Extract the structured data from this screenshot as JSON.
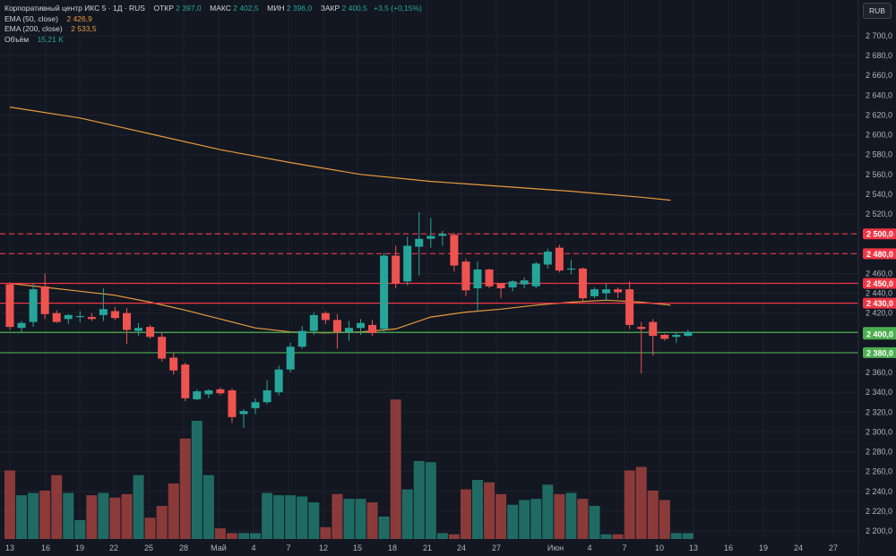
{
  "legend": {
    "instrument": "Корпоративный центр ИКС 5 · 1Д · RUS",
    "open_label": "ОТКР",
    "open_value": "2 397,0",
    "high_label": "МАКС",
    "high_value": "2 402,5",
    "low_label": "МИН",
    "low_value": "2 396,0",
    "close_label": "ЗАКР",
    "close_value": "2 400,5",
    "change": "+3,5 (+0,15%)",
    "ema50_label": "EMA (50, close)",
    "ema50_value": "2 426,9",
    "ema200_label": "EMA (200, close)",
    "ema200_value": "2 533,5",
    "volume_label": "Объём",
    "volume_value": "15,21 K"
  },
  "currency_button": "RUB",
  "colors": {
    "background": "#131722",
    "up": "#26a69a",
    "down": "#ef5350",
    "up_volume": "#1f6b64",
    "down_volume": "#8b3a3a",
    "ema50": "#e89a3c",
    "ema200": "#e89a3c",
    "resistance": "#f23645",
    "support": "#4caf50",
    "grid": "#1e222d",
    "axis_text": "#b2b5be"
  },
  "chart_data": {
    "type": "candlestick",
    "y_axis": {
      "ticks": [
        "2 700,0",
        "2 680,0",
        "2 660,0",
        "2 640,0",
        "2 620,0",
        "2 600,0",
        "2 580,0",
        "2 560,0",
        "2 540,0",
        "2 520,0",
        "2 500,0",
        "2 480,0",
        "2 460,0",
        "2 440,0",
        "2 420,0",
        "2 400,0",
        "2 380,0",
        "2 360,0",
        "2 340,0",
        "2 320,0",
        "2 300,0",
        "2 280,0",
        "2 260,0",
        "2 240,0",
        "2 220,0",
        "2 200,0"
      ],
      "tick_values": [
        2700,
        2680,
        2660,
        2640,
        2620,
        2600,
        2580,
        2560,
        2540,
        2520,
        2500,
        2480,
        2460,
        2440,
        2420,
        2400,
        2380,
        2360,
        2340,
        2320,
        2300,
        2280,
        2260,
        2240,
        2220,
        2200
      ],
      "range": [
        2192,
        2712
      ]
    },
    "x_axis": {
      "labels": [
        "13",
        "16",
        "19",
        "22",
        "25",
        "28",
        "Май",
        "4",
        "7",
        "12",
        "15",
        "18",
        "21",
        "24",
        "27",
        "Июн",
        "4",
        "7",
        "10",
        "13",
        "16",
        "19",
        "24",
        "27"
      ]
    },
    "candles": [
      {
        "o": 2449,
        "h": 2451,
        "l": 2403,
        "c": 2406
      },
      {
        "o": 2405,
        "h": 2412,
        "l": 2401,
        "c": 2410
      },
      {
        "o": 2411,
        "h": 2450,
        "l": 2406,
        "c": 2444
      },
      {
        "o": 2447,
        "h": 2460,
        "l": 2414,
        "c": 2419
      },
      {
        "o": 2420,
        "h": 2423,
        "l": 2410,
        "c": 2411
      },
      {
        "o": 2414,
        "h": 2419,
        "l": 2409,
        "c": 2418
      },
      {
        "o": 2416,
        "h": 2422,
        "l": 2411,
        "c": 2417
      },
      {
        "o": 2416,
        "h": 2420,
        "l": 2412,
        "c": 2414
      },
      {
        "o": 2418,
        "h": 2445,
        "l": 2412,
        "c": 2424
      },
      {
        "o": 2422,
        "h": 2426,
        "l": 2413,
        "c": 2415
      },
      {
        "o": 2420,
        "h": 2425,
        "l": 2389,
        "c": 2403
      },
      {
        "o": 2402,
        "h": 2410,
        "l": 2397,
        "c": 2405
      },
      {
        "o": 2406,
        "h": 2408,
        "l": 2394,
        "c": 2396
      },
      {
        "o": 2396,
        "h": 2400,
        "l": 2371,
        "c": 2374
      },
      {
        "o": 2375,
        "h": 2380,
        "l": 2358,
        "c": 2362
      },
      {
        "o": 2368,
        "h": 2370,
        "l": 2331,
        "c": 2334
      },
      {
        "o": 2333,
        "h": 2343,
        "l": 2332,
        "c": 2341
      },
      {
        "o": 2338,
        "h": 2343,
        "l": 2334,
        "c": 2342
      },
      {
        "o": 2343,
        "h": 2345,
        "l": 2337,
        "c": 2339
      },
      {
        "o": 2342,
        "h": 2344,
        "l": 2309,
        "c": 2315
      },
      {
        "o": 2318,
        "h": 2323,
        "l": 2304,
        "c": 2321
      },
      {
        "o": 2324,
        "h": 2334,
        "l": 2318,
        "c": 2330
      },
      {
        "o": 2330,
        "h": 2352,
        "l": 2328,
        "c": 2342
      },
      {
        "o": 2340,
        "h": 2367,
        "l": 2337,
        "c": 2363
      },
      {
        "o": 2363,
        "h": 2390,
        "l": 2360,
        "c": 2386
      },
      {
        "o": 2386,
        "h": 2407,
        "l": 2384,
        "c": 2402
      },
      {
        "o": 2402,
        "h": 2421,
        "l": 2398,
        "c": 2418
      },
      {
        "o": 2420,
        "h": 2422,
        "l": 2409,
        "c": 2413
      },
      {
        "o": 2413,
        "h": 2419,
        "l": 2384,
        "c": 2401
      },
      {
        "o": 2401,
        "h": 2412,
        "l": 2392,
        "c": 2405
      },
      {
        "o": 2405,
        "h": 2414,
        "l": 2398,
        "c": 2410
      },
      {
        "o": 2408,
        "h": 2413,
        "l": 2397,
        "c": 2400
      },
      {
        "o": 2404,
        "h": 2481,
        "l": 2400,
        "c": 2478
      },
      {
        "o": 2478,
        "h": 2488,
        "l": 2445,
        "c": 2450
      },
      {
        "o": 2452,
        "h": 2497,
        "l": 2448,
        "c": 2488
      },
      {
        "o": 2487,
        "h": 2522,
        "l": 2458,
        "c": 2495
      },
      {
        "o": 2495,
        "h": 2516,
        "l": 2486,
        "c": 2498
      },
      {
        "o": 2498,
        "h": 2503,
        "l": 2488,
        "c": 2500
      },
      {
        "o": 2499,
        "h": 2501,
        "l": 2462,
        "c": 2468
      },
      {
        "o": 2472,
        "h": 2475,
        "l": 2437,
        "c": 2443
      },
      {
        "o": 2445,
        "h": 2472,
        "l": 2422,
        "c": 2464
      },
      {
        "o": 2464,
        "h": 2465,
        "l": 2445,
        "c": 2447
      },
      {
        "o": 2450,
        "h": 2450,
        "l": 2435,
        "c": 2445
      },
      {
        "o": 2446,
        "h": 2453,
        "l": 2442,
        "c": 2452
      },
      {
        "o": 2449,
        "h": 2456,
        "l": 2445,
        "c": 2453
      },
      {
        "o": 2447,
        "h": 2472,
        "l": 2445,
        "c": 2470
      },
      {
        "o": 2469,
        "h": 2485,
        "l": 2465,
        "c": 2482
      },
      {
        "o": 2486,
        "h": 2489,
        "l": 2461,
        "c": 2463
      },
      {
        "o": 2465,
        "h": 2474,
        "l": 2459,
        "c": 2465
      },
      {
        "o": 2465,
        "h": 2466,
        "l": 2432,
        "c": 2435
      },
      {
        "o": 2437,
        "h": 2446,
        "l": 2435,
        "c": 2444
      },
      {
        "o": 2440,
        "h": 2450,
        "l": 2432,
        "c": 2444
      },
      {
        "o": 2444,
        "h": 2446,
        "l": 2435,
        "c": 2441
      },
      {
        "o": 2444,
        "h": 2452,
        "l": 2404,
        "c": 2408
      },
      {
        "o": 2406,
        "h": 2411,
        "l": 2359,
        "c": 2404
      },
      {
        "o": 2411,
        "h": 2414,
        "l": 2377,
        "c": 2397
      },
      {
        "o": 2398,
        "h": 2399,
        "l": 2392,
        "c": 2394
      },
      {
        "o": 2396,
        "h": 2400,
        "l": 2390,
        "c": 2398
      },
      {
        "o": 2397,
        "h": 2403,
        "l": 2396,
        "c": 2401
      }
    ],
    "volume_relative": [
      0.58,
      0.37,
      0.39,
      0.41,
      0.54,
      0.39,
      0.16,
      0.37,
      0.39,
      0.35,
      0.38,
      0.54,
      0.18,
      0.28,
      0.47,
      0.85,
      1.0,
      0.54,
      0.09,
      0.05,
      0.05,
      0.05,
      0.39,
      0.37,
      0.37,
      0.36,
      0.31,
      0.1,
      0.38,
      0.34,
      0.34,
      0.31,
      0.19,
      1.18,
      0.42,
      0.66,
      0.65,
      0.05,
      0.04,
      0.42,
      0.5,
      0.48,
      0.38,
      0.29,
      0.33,
      0.34,
      0.46,
      0.38,
      0.39,
      0.34,
      0.28,
      0.04,
      0.04,
      0.58,
      0.61,
      0.41,
      0.33,
      0.05,
      0.05
    ],
    "ema50": [
      [
        0,
        2450
      ],
      [
        3,
        2446
      ],
      [
        6,
        2442
      ],
      [
        9,
        2438
      ],
      [
        12,
        2431
      ],
      [
        15,
        2423
      ],
      [
        18,
        2414
      ],
      [
        21,
        2405
      ],
      [
        24,
        2401
      ],
      [
        27,
        2400
      ],
      [
        30,
        2401
      ],
      [
        33,
        2404
      ],
      [
        36,
        2416
      ],
      [
        39,
        2421
      ],
      [
        42,
        2424
      ],
      [
        45,
        2428
      ],
      [
        48,
        2431
      ],
      [
        51,
        2433
      ],
      [
        54,
        2431
      ],
      [
        56.5,
        2428
      ]
    ],
    "ema200": [
      [
        0,
        2628
      ],
      [
        6,
        2617
      ],
      [
        12,
        2601
      ],
      [
        18,
        2585
      ],
      [
        24,
        2572
      ],
      [
        30,
        2560
      ],
      [
        36,
        2553
      ],
      [
        42,
        2548
      ],
      [
        48,
        2543
      ],
      [
        54,
        2537
      ],
      [
        56.5,
        2534
      ]
    ],
    "levels": [
      {
        "value": 2500,
        "label": "2 500,0",
        "kind": "resistance",
        "style": "dashed"
      },
      {
        "value": 2480,
        "label": "2 480,0",
        "kind": "resistance",
        "style": "dashed"
      },
      {
        "value": 2450,
        "label": "2 450,0",
        "kind": "resistance",
        "style": "solid"
      },
      {
        "value": 2430,
        "label": "2 430,0",
        "kind": "resistance",
        "style": "solid"
      },
      {
        "value": 2400.5,
        "label": "2 400,5",
        "kind": "support",
        "style": "solid"
      },
      {
        "value": 2380,
        "label": "2 380,0",
        "kind": "support",
        "style": "solid"
      }
    ],
    "extra_price_label": {
      "value": 2400,
      "label": "2 400,0"
    }
  }
}
